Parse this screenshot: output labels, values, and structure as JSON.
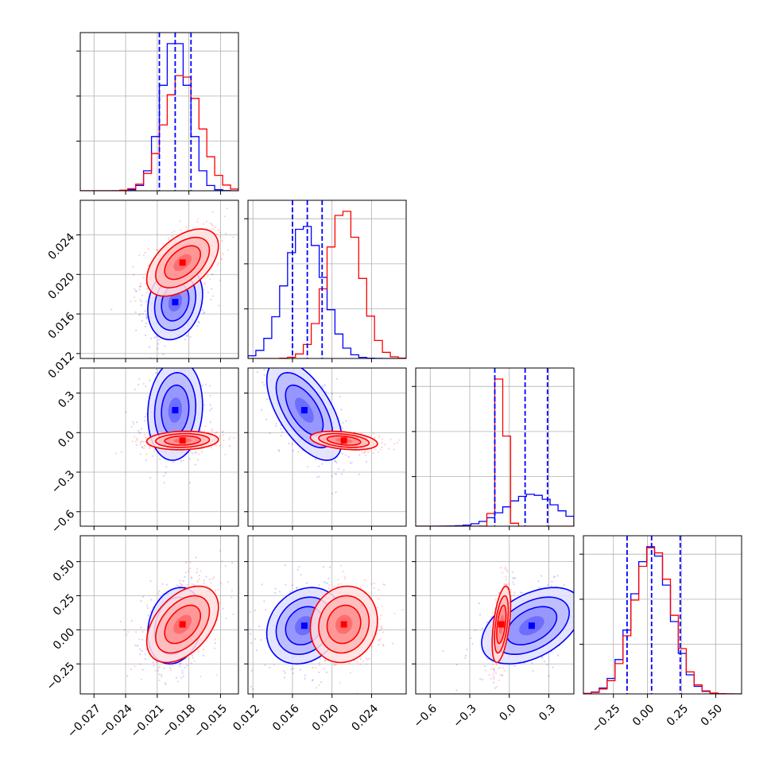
{
  "figure": {
    "type": "corner-plot",
    "colors": {
      "series_a": "#ff0000",
      "series_b": "#0000ff",
      "grid": "#b0b0b0",
      "frame": "#000000"
    }
  },
  "chart_data": {
    "type": "corner",
    "grid": true,
    "parameters": [
      {
        "range": [
          -0.0283,
          -0.0133
        ],
        "ticks": [
          -0.027,
          -0.024,
          -0.021,
          -0.018,
          -0.015
        ],
        "tick_labels": [
          "−0.027",
          "−0.024",
          "−0.021",
          "−0.018",
          "−0.015"
        ]
      },
      {
        "range": [
          0.0115,
          0.0275
        ],
        "ticks": [
          0.012,
          0.016,
          0.02,
          0.024
        ],
        "tick_labels": [
          "0.012",
          "0.016",
          "0.020",
          "0.024"
        ]
      },
      {
        "range": [
          -0.71,
          0.49
        ],
        "ticks": [
          -0.6,
          -0.3,
          0.0,
          0.3
        ],
        "tick_labels": [
          "−0.6",
          "−0.3",
          "0.0",
          "0.3"
        ]
      },
      {
        "range": [
          -0.47,
          0.69
        ],
        "ticks": [
          -0.25,
          0.0,
          0.25,
          0.5
        ],
        "tick_labels": [
          "−0.25",
          "0.00",
          "0.25",
          "0.50"
        ]
      }
    ],
    "series": [
      {
        "color": "#0000ff",
        "means": [
          -0.0193,
          0.0172,
          0.17,
          0.03
        ],
        "stds": [
          0.0013,
          0.0019,
          0.19,
          0.14
        ],
        "correlations": [
          [
            0,
            1,
            0.2
          ],
          [
            0,
            2,
            0.1
          ],
          [
            1,
            2,
            -0.6
          ],
          [
            0,
            3,
            0.2
          ],
          [
            1,
            3,
            0.2
          ],
          [
            2,
            3,
            0.45
          ]
        ],
        "quantiles": [
          [
            -0.0208,
            -0.0193,
            -0.0178
          ],
          [
            0.016,
            0.0175,
            0.019
          ],
          [
            -0.11,
            0.12,
            0.29
          ],
          [
            -0.15,
            0.03,
            0.24
          ]
        ]
      },
      {
        "color": "#ff0000",
        "means": [
          -0.0186,
          0.0212,
          -0.06,
          0.04
        ],
        "stds": [
          0.0017,
          0.0017,
          0.035,
          0.14
        ],
        "correlations": [
          [
            0,
            1,
            0.5
          ],
          [
            0,
            2,
            0.1
          ],
          [
            1,
            2,
            -0.35
          ],
          [
            0,
            3,
            0.45
          ],
          [
            1,
            3,
            0.1
          ],
          [
            2,
            3,
            0.5
          ]
        ]
      }
    ]
  }
}
